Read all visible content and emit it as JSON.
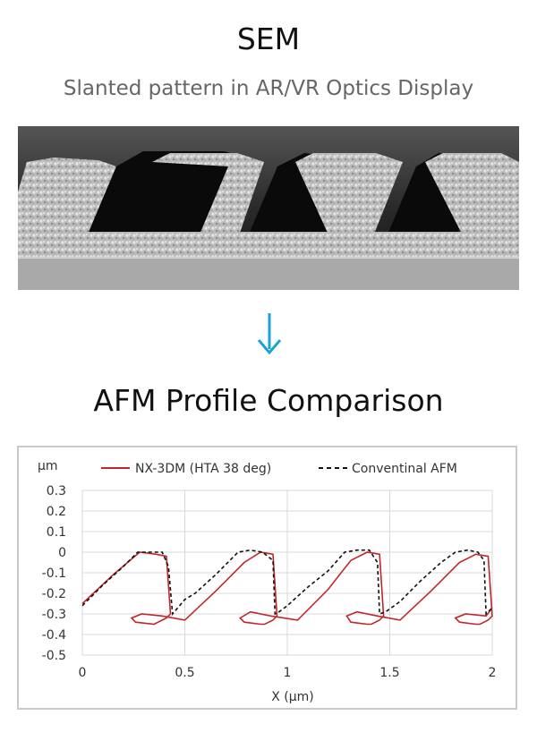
{
  "sem": {
    "title": "SEM",
    "subtitle": "Slanted pattern in AR/VR Optics Display",
    "image_icon": "sem-slanted-grating-micrograph"
  },
  "arrow": {
    "icon": "down-arrow-icon",
    "color": "#1aa3d6"
  },
  "afm": {
    "title": "AFM Profile Comparison"
  },
  "chart_data": {
    "type": "line",
    "title": "",
    "xlabel": "X (µm)",
    "ylabel": "µm",
    "xlim": [
      0,
      2
    ],
    "ylim": [
      -0.5,
      0.3
    ],
    "x_ticks": [
      "0",
      "0.5",
      "1",
      "1.5",
      "2"
    ],
    "y_ticks": [
      "0.3",
      "0.2",
      "0.1",
      "0",
      "-0.1",
      "-0.2",
      "-0.3",
      "-0.4",
      "-0.5"
    ],
    "grid": true,
    "legend_position": "top",
    "series": [
      {
        "name": "NX-3DM (HTA 38 deg)",
        "color": "#c0272d",
        "style": "solid",
        "x": [
          0.0,
          0.15,
          0.28,
          0.36,
          0.41,
          0.43,
          0.41,
          0.39,
          0.37,
          0.35,
          0.26,
          0.24,
          0.29,
          0.39,
          0.5,
          0.65,
          0.79,
          0.87,
          0.93,
          0.95,
          0.93,
          0.91,
          0.89,
          0.87,
          0.79,
          0.77,
          0.82,
          0.92,
          1.05,
          1.2,
          1.31,
          1.39,
          1.45,
          1.47,
          1.45,
          1.43,
          1.41,
          1.39,
          1.31,
          1.29,
          1.34,
          1.44,
          1.55,
          1.7,
          1.84,
          1.92,
          1.98,
          2.0,
          1.98,
          1.96,
          1.94,
          1.92,
          1.84,
          1.82,
          1.87,
          1.97,
          2.0
        ],
        "y": [
          -0.25,
          -0.11,
          0.0,
          -0.01,
          -0.02,
          -0.3,
          -0.32,
          -0.33,
          -0.34,
          -0.35,
          -0.34,
          -0.32,
          -0.3,
          -0.31,
          -0.33,
          -0.19,
          -0.05,
          0.0,
          -0.01,
          -0.31,
          -0.33,
          -0.34,
          -0.35,
          -0.35,
          -0.34,
          -0.32,
          -0.29,
          -0.31,
          -0.33,
          -0.18,
          -0.04,
          0.0,
          -0.01,
          -0.31,
          -0.33,
          -0.34,
          -0.35,
          -0.35,
          -0.34,
          -0.31,
          -0.29,
          -0.31,
          -0.33,
          -0.19,
          -0.05,
          -0.01,
          -0.02,
          -0.31,
          -0.33,
          -0.34,
          -0.35,
          -0.35,
          -0.34,
          -0.32,
          -0.3,
          -0.31,
          -0.27
        ]
      },
      {
        "name": "Conventinal AFM",
        "color": "#111111",
        "style": "dashed",
        "x": [
          0.0,
          0.1,
          0.2,
          0.27,
          0.34,
          0.39,
          0.42,
          0.44,
          0.5,
          0.55,
          0.65,
          0.76,
          0.82,
          0.88,
          0.93,
          0.94,
          0.96,
          1.0,
          1.1,
          1.2,
          1.28,
          1.34,
          1.4,
          1.44,
          1.45,
          1.48,
          1.55,
          1.65,
          1.75,
          1.82,
          1.88,
          1.93,
          1.96,
          1.97,
          2.0
        ],
        "y": [
          -0.26,
          -0.16,
          -0.07,
          0.0,
          0.0,
          0.0,
          -0.07,
          -0.3,
          -0.23,
          -0.2,
          -0.11,
          0.0,
          0.01,
          0.0,
          -0.04,
          -0.3,
          -0.29,
          -0.26,
          -0.17,
          -0.09,
          0.0,
          0.01,
          0.01,
          -0.05,
          -0.3,
          -0.29,
          -0.24,
          -0.14,
          -0.05,
          0.0,
          0.01,
          0.0,
          -0.04,
          -0.3,
          -0.27
        ]
      }
    ]
  }
}
